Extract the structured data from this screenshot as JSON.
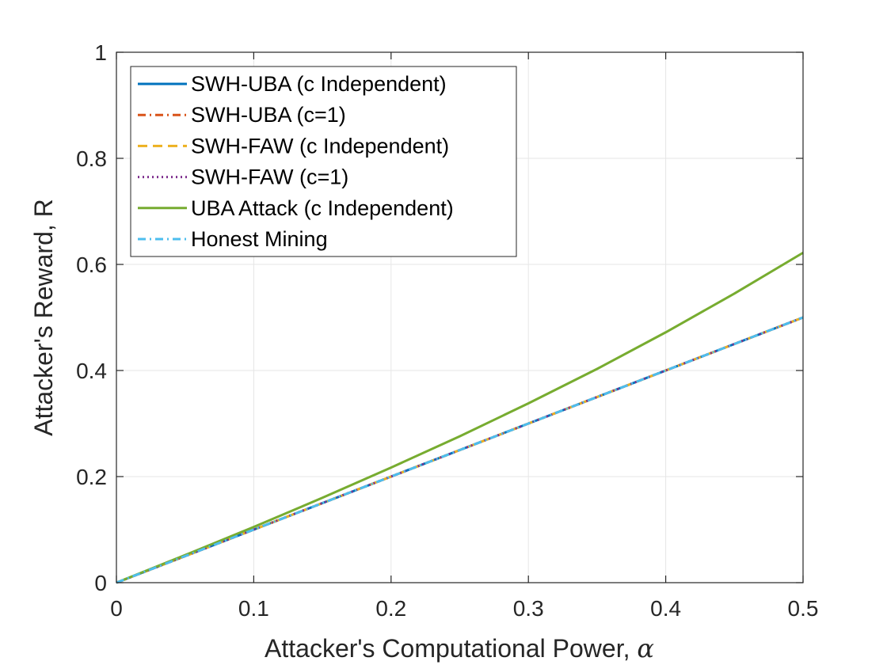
{
  "chart_data": {
    "type": "line",
    "title": "",
    "xlabel": "Attacker's Computational Power, ",
    "xlabel_symbol": "α",
    "ylabel": "Attacker's Reward, R",
    "xlim": [
      0,
      0.5
    ],
    "ylim": [
      0,
      1
    ],
    "x_ticks": [
      "0",
      "0.1",
      "0.2",
      "0.3",
      "0.4",
      "0.5"
    ],
    "y_ticks": [
      "0",
      "0.2",
      "0.4",
      "0.6",
      "0.8",
      "1"
    ],
    "grid": true,
    "legend_position": "top-left",
    "x": [
      0,
      0.05,
      0.1,
      0.15,
      0.2,
      0.25,
      0.3,
      0.35,
      0.4,
      0.45,
      0.5
    ],
    "series": [
      {
        "name": "SWH-UBA (c Independent)",
        "color": "#0072BD",
        "dash": "solid",
        "values": [
          0,
          0.05,
          0.1,
          0.15,
          0.2,
          0.25,
          0.3,
          0.35,
          0.4,
          0.45,
          0.5
        ]
      },
      {
        "name": "SWH-UBA (c=1)",
        "color": "#D95319",
        "dash": "dashdot",
        "values": [
          0,
          0.05,
          0.1,
          0.15,
          0.2,
          0.25,
          0.3,
          0.35,
          0.4,
          0.45,
          0.5
        ]
      },
      {
        "name": "SWH-FAW (c Independent)",
        "color": "#EDB120",
        "dash": "dashed",
        "values": [
          0,
          0.05,
          0.1,
          0.15,
          0.2,
          0.25,
          0.3,
          0.35,
          0.4,
          0.45,
          0.5
        ]
      },
      {
        "name": "SWH-FAW (c=1)",
        "color": "#7E2F8E",
        "dash": "dotted",
        "values": [
          0,
          0.05,
          0.1,
          0.15,
          0.2,
          0.25,
          0.3,
          0.35,
          0.4,
          0.45,
          0.5
        ]
      },
      {
        "name": "UBA Attack (c Independent)",
        "color": "#77AC30",
        "dash": "solid",
        "values": [
          0,
          0.052,
          0.105,
          0.16,
          0.217,
          0.276,
          0.338,
          0.403,
          0.472,
          0.545,
          0.622
        ]
      },
      {
        "name": "Honest Mining",
        "color": "#4DBEEE",
        "dash": "dashdot",
        "values": [
          0,
          0.05,
          0.1,
          0.15,
          0.2,
          0.25,
          0.3,
          0.35,
          0.4,
          0.45,
          0.5
        ]
      }
    ]
  }
}
